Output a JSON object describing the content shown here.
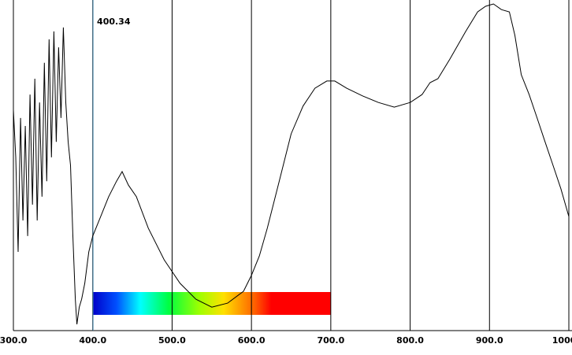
{
  "chart_data": {
    "type": "line",
    "x": [
      300,
      303,
      306,
      309,
      312,
      315,
      318,
      321,
      324,
      327,
      330,
      333,
      336,
      339,
      342,
      345,
      348,
      351,
      354,
      357,
      360,
      363,
      366,
      369,
      372,
      375,
      378,
      380,
      383,
      386,
      390,
      395,
      400,
      410,
      420,
      430,
      437,
      445,
      455,
      470,
      490,
      510,
      530,
      550,
      570,
      590,
      600,
      610,
      620,
      635,
      650,
      665,
      680,
      695,
      705,
      720,
      740,
      760,
      780,
      800,
      815,
      825,
      835,
      850,
      870,
      885,
      895,
      905,
      915,
      925,
      932,
      940,
      950,
      960,
      970,
      980,
      990,
      1000
    ],
    "series": [
      {
        "color": "#000000",
        "values": [
          66.7,
          52.4,
          23.8,
          64.3,
          33.3,
          61.9,
          28.6,
          71.4,
          38.1,
          76.2,
          33.3,
          69.0,
          40.5,
          81.0,
          45.2,
          88.1,
          52.4,
          90.5,
          57.1,
          85.7,
          64.3,
          91.7,
          69.0,
          57.1,
          50.0,
          28.6,
          9.5,
          1.9,
          7.1,
          9.5,
          14.3,
          23.8,
          28.6,
          34.5,
          40.5,
          45.2,
          48.1,
          44.0,
          40.5,
          31.0,
          21.4,
          14.3,
          9.5,
          7.1,
          8.3,
          11.9,
          16.7,
          22.6,
          31.0,
          45.2,
          59.5,
          67.9,
          73.3,
          75.5,
          75.5,
          73.3,
          71.0,
          69.0,
          67.6,
          69.0,
          71.4,
          75.0,
          76.2,
          82.1,
          90.5,
          96.4,
          98.1,
          98.8,
          97.1,
          96.4,
          89.3,
          77.4,
          71.4,
          64.3,
          57.1,
          50.0,
          42.9,
          34.5
        ]
      }
    ],
    "xlim": [
      300,
      1000
    ],
    "ylim": [
      0,
      100
    ],
    "xticks": [
      {
        "value": 300,
        "label": "300.0"
      },
      {
        "value": 400,
        "label": "400.0"
      },
      {
        "value": 500,
        "label": "500.0"
      },
      {
        "value": 600,
        "label": "600.0"
      },
      {
        "value": 700,
        "label": "700.0"
      },
      {
        "value": 800,
        "label": "800.0"
      },
      {
        "value": 900,
        "label": "900.0"
      },
      {
        "value": 1000,
        "label": "1000.0"
      }
    ],
    "grid": true,
    "cursor": 400.34,
    "cursor_color": "#3a7fa8",
    "spectrum_bar": [
      400,
      700
    ]
  }
}
